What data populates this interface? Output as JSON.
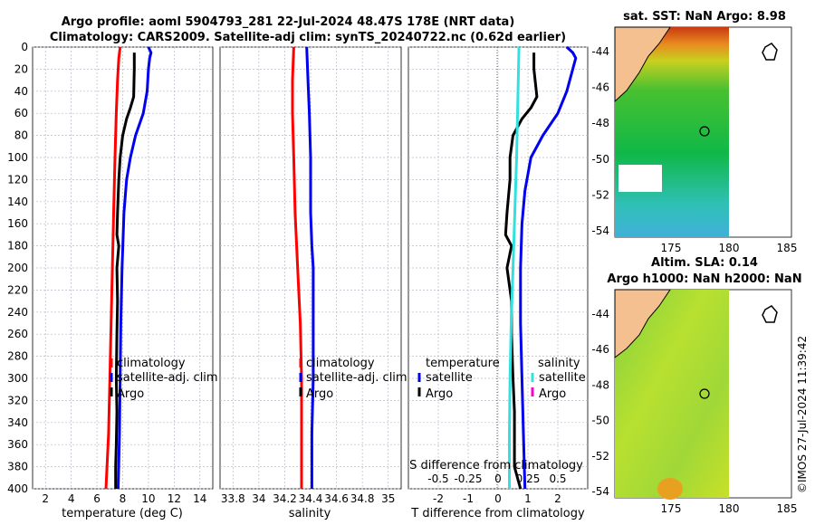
{
  "title_line1": "Argo profile: aoml 5904793_281 22-Jul-2024 48.47S 178E (NRT data)",
  "title_line2": "Climatology: CARS2009. Satellite-adj clim: synTS_20240722.nc (0.62d earlier)",
  "credit": "©IMOS 27-Jul-2024 11:39:42",
  "colors": {
    "clim": "#ff0000",
    "sat": "#0000ee",
    "argo": "#000000",
    "sal_sat": "#33e0e0",
    "sal_argo": "#ff00cc"
  },
  "chart_data": [
    {
      "type": "line",
      "name": "temperature",
      "xlabel": "temperature (deg C)",
      "ylabel": "",
      "xlim": [
        1,
        15
      ],
      "ylim": [
        400,
        0
      ],
      "xticks": [
        2,
        4,
        6,
        8,
        10,
        12,
        14
      ],
      "xtick_labels": [
        "2",
        "4",
        "6",
        "8",
        "10",
        "12",
        "14"
      ],
      "yticks": [
        0,
        20,
        40,
        60,
        80,
        100,
        120,
        140,
        160,
        180,
        200,
        220,
        240,
        260,
        280,
        300,
        320,
        340,
        360,
        380,
        400
      ],
      "ytick_labels": [
        "0",
        "20",
        "40",
        "60",
        "80",
        "100",
        "120",
        "140",
        "160",
        "180",
        "200",
        "220",
        "240",
        "260",
        "280",
        "300",
        "320",
        "340",
        "360",
        "380",
        "400"
      ],
      "legend": [
        "climatology",
        "satellite-adj. clim",
        "Argo"
      ],
      "series": [
        {
          "name": "climatology",
          "color": "#ff0000",
          "depth": [
            0,
            10,
            30,
            60,
            100,
            150,
            200,
            250,
            300,
            350,
            400
          ],
          "values": [
            7.8,
            7.7,
            7.6,
            7.5,
            7.4,
            7.3,
            7.2,
            7.1,
            7.0,
            6.9,
            6.7
          ]
        },
        {
          "name": "satellite-adj. clim",
          "color": "#0000ee",
          "depth": [
            0,
            5,
            10,
            20,
            40,
            60,
            80,
            100,
            120,
            150,
            200,
            250,
            300,
            350,
            400
          ],
          "values": [
            10.0,
            10.2,
            10.1,
            10.0,
            9.9,
            9.6,
            9.0,
            8.6,
            8.3,
            8.1,
            7.95,
            7.85,
            7.8,
            7.75,
            7.65
          ]
        },
        {
          "name": "Argo",
          "color": "#000000",
          "depth": [
            5,
            20,
            45,
            55,
            65,
            80,
            100,
            120,
            150,
            170,
            180,
            200,
            230,
            260,
            300,
            330,
            360,
            380,
            400
          ],
          "values": [
            8.9,
            8.9,
            8.85,
            8.6,
            8.3,
            8.0,
            7.8,
            7.7,
            7.6,
            7.55,
            7.7,
            7.55,
            7.6,
            7.55,
            7.5,
            7.55,
            7.5,
            7.45,
            7.45
          ]
        }
      ]
    },
    {
      "type": "line",
      "name": "salinity",
      "xlabel": "salinity",
      "ylabel": "",
      "xlim": [
        33.7,
        35.1
      ],
      "ylim": [
        400,
        0
      ],
      "xticks": [
        33.8,
        34,
        34.2,
        34.4,
        34.6,
        34.8,
        35
      ],
      "xtick_labels": [
        "33.8",
        "34",
        "34.2",
        "34.4",
        "34.6",
        "34.8",
        "35"
      ],
      "legend": [
        "climatology",
        "satellite-adj. clim",
        "Argo"
      ],
      "series": [
        {
          "name": "climatology",
          "color": "#ff0000",
          "depth": [
            0,
            30,
            60,
            100,
            150,
            200,
            250,
            300,
            350,
            400
          ],
          "values": [
            34.27,
            34.26,
            34.26,
            34.27,
            34.28,
            34.3,
            34.32,
            34.33,
            34.33,
            34.33
          ]
        },
        {
          "name": "satellite-adj. clim",
          "color": "#0000ee",
          "depth": [
            0,
            30,
            60,
            100,
            150,
            180,
            200,
            250,
            300,
            350,
            400
          ],
          "values": [
            34.37,
            34.38,
            34.39,
            34.4,
            34.4,
            34.41,
            34.42,
            34.42,
            34.42,
            34.41,
            34.41
          ]
        },
        {
          "name": "Argo",
          "color": "#000000",
          "depth": [],
          "values": []
        }
      ]
    },
    {
      "type": "line",
      "name": "difference from climatology",
      "xlabel": "T difference from climatology",
      "xlabel_top": "S difference from climatology",
      "xlim": [
        -3,
        3
      ],
      "ylim": [
        400,
        0
      ],
      "xticks": [
        -2,
        -1,
        0,
        1,
        2
      ],
      "xtick_labels": [
        "-2",
        "-1",
        "0",
        "1",
        "2"
      ],
      "xticks_top": [
        -0.5,
        -0.25,
        0,
        0.25,
        0.5
      ],
      "xtick_labels_top": [
        "-0.5",
        "-0.25",
        "0",
        "0.25",
        "0.5"
      ],
      "s_scale": 4,
      "legend_t_title": "temperature",
      "legend_t": [
        "satellite",
        "Argo"
      ],
      "legend_s_title": "salinity",
      "legend_s": [
        "satellite",
        "Argo"
      ],
      "series": [
        {
          "name": "T satellite",
          "color": "#0000ee",
          "depth": [
            0,
            5,
            10,
            20,
            40,
            60,
            80,
            100,
            130,
            160,
            200,
            250,
            300,
            350,
            400
          ],
          "values": [
            2.3,
            2.5,
            2.6,
            2.5,
            2.3,
            2.0,
            1.5,
            1.1,
            0.9,
            0.8,
            0.75,
            0.75,
            0.8,
            0.85,
            0.9
          ]
        },
        {
          "name": "T Argo",
          "color": "#000000",
          "depth": [
            5,
            20,
            45,
            55,
            65,
            80,
            100,
            120,
            150,
            170,
            180,
            200,
            230,
            260,
            300,
            330,
            360,
            380,
            400
          ],
          "values": [
            1.2,
            1.2,
            1.3,
            1.1,
            0.8,
            0.5,
            0.4,
            0.4,
            0.3,
            0.25,
            0.45,
            0.3,
            0.45,
            0.45,
            0.5,
            0.55,
            0.55,
            0.55,
            0.75
          ]
        },
        {
          "name": "S satellite",
          "color": "#33e0e0",
          "depth": [
            0,
            50,
            100,
            150,
            200,
            250,
            300,
            350,
            400
          ],
          "values": [
            0.175,
            0.165,
            0.155,
            0.14,
            0.125,
            0.11,
            0.1,
            0.095,
            0.095
          ]
        }
      ]
    }
  ],
  "maps": [
    {
      "name": "sst-map",
      "title": "sat. SST: NaN Argo: 8.98",
      "xticks": [
        "175",
        "180",
        "185"
      ],
      "yticks": [
        "-44",
        "-46",
        "-48",
        "-50",
        "-52",
        "-54"
      ]
    },
    {
      "name": "sla-map",
      "title_line1": "Altim. SLA: 0.14",
      "title_line2": "Argo h1000: NaN h2000: NaN",
      "xticks": [
        "175",
        "180",
        "185"
      ],
      "yticks": [
        "-44",
        "-46",
        "-48",
        "-50",
        "-52",
        "-54"
      ]
    }
  ]
}
